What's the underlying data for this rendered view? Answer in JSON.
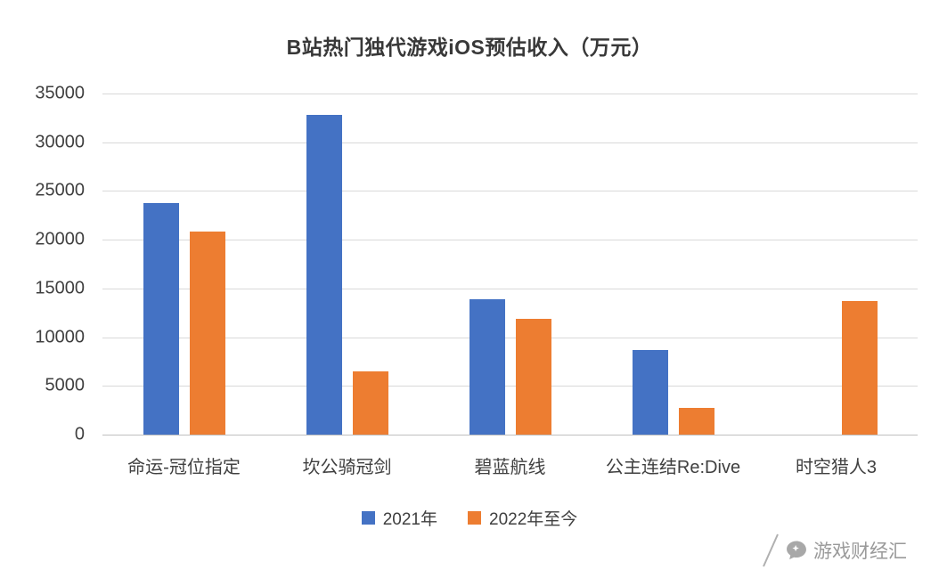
{
  "title": "B站热门独代游戏iOS预估收入（万元）",
  "chart_data": {
    "type": "bar",
    "title": "B站热门独代游戏iOS预估收入（万元）",
    "categories": [
      "命运-冠位指定",
      "坎公骑冠剑",
      "碧蓝航线",
      "公主连结Re:Dive",
      "时空猎人3"
    ],
    "series": [
      {
        "name": "2021年",
        "color": "#4472C4",
        "values": [
          23800,
          32800,
          13900,
          8700,
          0
        ]
      },
      {
        "name": "2022年至今",
        "color": "#ED7D31",
        "values": [
          20800,
          6500,
          11900,
          2700,
          13700
        ]
      }
    ],
    "xlabel": "",
    "ylabel": "",
    "ylim": [
      0,
      35000
    ],
    "ytick_step": 5000,
    "grid": true,
    "legend_position": "bottom"
  },
  "watermark": {
    "text": "游戏财经汇"
  },
  "icons": {
    "slash": "slash-icon",
    "bubble": "chat-bubble-icon"
  }
}
